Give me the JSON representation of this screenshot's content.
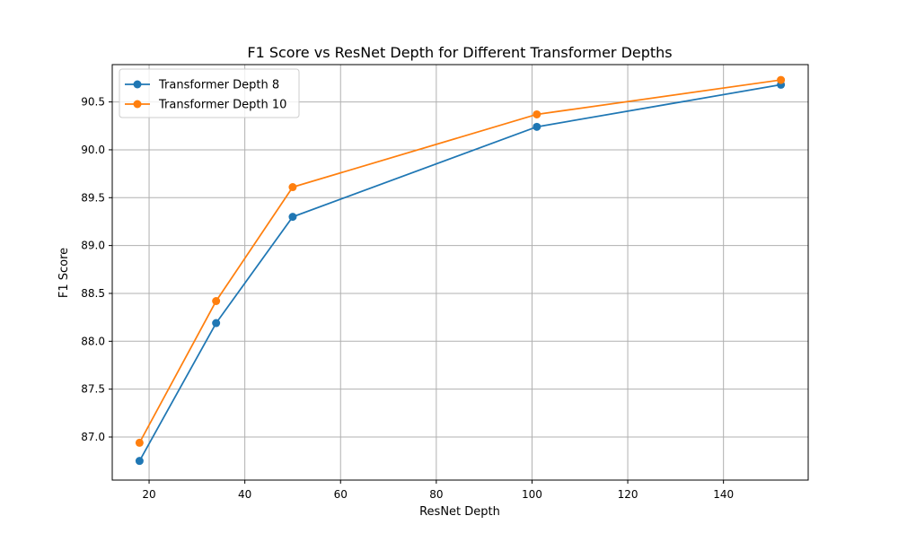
{
  "chart_data": {
    "type": "line",
    "title": "F1 Score vs ResNet Depth for Different Transformer Depths",
    "xlabel": "ResNet Depth",
    "ylabel": "F1 Score",
    "x": [
      18,
      34,
      50,
      101,
      152
    ],
    "xlim": [
      12.3,
      157.7
    ],
    "ylim": [
      86.55,
      90.89
    ],
    "xticks": [
      20,
      40,
      60,
      80,
      100,
      120,
      140
    ],
    "xtick_labels": [
      "20",
      "40",
      "60",
      "80",
      "100",
      "120",
      "140"
    ],
    "yticks": [
      87.0,
      87.5,
      88.0,
      88.5,
      89.0,
      89.5,
      90.0,
      90.5
    ],
    "ytick_labels": [
      "87.0",
      "87.5",
      "88.0",
      "88.5",
      "89.0",
      "89.5",
      "90.0",
      "90.5"
    ],
    "grid": true,
    "legend_position": "top-left",
    "series": [
      {
        "name": "Transformer Depth 8",
        "color": "#1f77b4",
        "marker": "circle",
        "values": [
          86.75,
          88.19,
          89.3,
          90.24,
          90.68
        ]
      },
      {
        "name": "Transformer Depth 10",
        "color": "#ff7f0e",
        "marker": "circle",
        "values": [
          86.94,
          88.42,
          89.61,
          90.37,
          90.73
        ]
      }
    ]
  }
}
